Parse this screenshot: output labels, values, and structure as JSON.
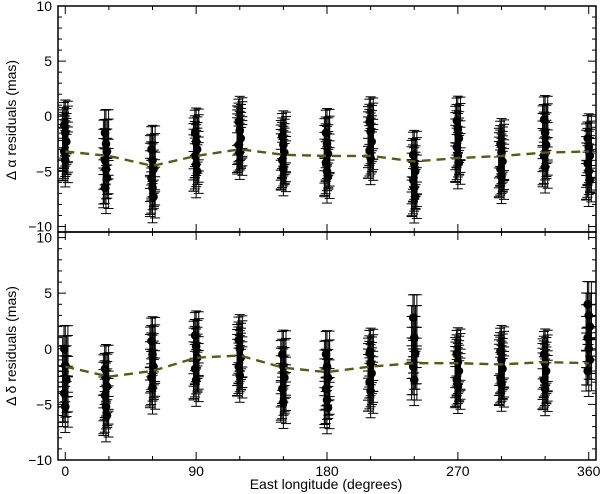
{
  "chart_data": [
    {
      "type": "scatter",
      "panel": "top",
      "ylabel": "Δ α residuals (mas)",
      "xlabel": "",
      "xlim": [
        -5,
        365
      ],
      "ylim": [
        -10.5,
        10
      ],
      "xticks": [
        0,
        90,
        180,
        270,
        360
      ],
      "yticks": [
        -10,
        -5,
        0,
        5,
        10
      ],
      "ytick_labels": [
        "−10",
        "−5",
        "0",
        "5",
        "10"
      ],
      "grid": false,
      "model_line": {
        "style": "dashed",
        "color": "#5a5a16",
        "x": [
          0,
          30,
          60,
          90,
          120,
          150,
          180,
          210,
          240,
          270,
          300,
          330,
          360
        ],
        "y": [
          -3.2,
          -3.6,
          -4.5,
          -3.6,
          -3.0,
          -3.5,
          -3.6,
          -3.6,
          -4.1,
          -3.8,
          -3.6,
          -3.3,
          -3.2
        ]
      },
      "groups": [
        {
          "x": 0,
          "y": [
            -0.8,
            -1.5,
            -2.3,
            -3.2,
            -4.0
          ]
        },
        {
          "x": 28,
          "y": [
            -1.5,
            -2.5,
            -3.2,
            -4.0,
            -4.8,
            -5.6,
            -6.5
          ]
        },
        {
          "x": 60,
          "y": [
            -3.0,
            -4.0,
            -4.8,
            -5.6,
            -6.5,
            -7.3
          ]
        },
        {
          "x": 90,
          "y": [
            -1.5,
            -2.3,
            -3.0,
            -3.6,
            -4.4,
            -5.0
          ]
        },
        {
          "x": 120,
          "y": [
            -0.5,
            -1.3,
            -2.0,
            -2.6,
            -3.3
          ]
        },
        {
          "x": 150,
          "y": [
            -1.8,
            -2.6,
            -3.3,
            -4.0,
            -4.8
          ]
        },
        {
          "x": 180,
          "y": [
            -1.5,
            -2.5,
            -3.4,
            -4.2,
            -5.0,
            -5.5
          ]
        },
        {
          "x": 210,
          "y": [
            -0.5,
            -1.4,
            -2.3,
            -3.1,
            -3.8
          ]
        },
        {
          "x": 240,
          "y": [
            -3.5,
            -4.3,
            -5.0,
            -5.8,
            -6.5,
            -7.3
          ]
        },
        {
          "x": 270,
          "y": [
            -0.4,
            -1.2,
            -2.0,
            -2.8,
            -3.6,
            -4.2
          ]
        },
        {
          "x": 300,
          "y": [
            -2.5,
            -3.3,
            -4.1,
            -4.8,
            -5.5
          ]
        },
        {
          "x": 330,
          "y": [
            -0.3,
            -1.5,
            -2.6,
            -3.6,
            -4.6
          ]
        },
        {
          "x": 360,
          "y": [
            -2.0,
            -2.8,
            -3.6,
            -4.3,
            -5.0,
            -5.8
          ]
        }
      ]
    },
    {
      "type": "scatter",
      "panel": "bottom",
      "ylabel": "Δ δ residuals (mas)",
      "xlabel": "East longitude (degrees)",
      "xlim": [
        -5,
        365
      ],
      "ylim": [
        -10,
        10.5
      ],
      "xticks": [
        0,
        90,
        180,
        270,
        360
      ],
      "yticks": [
        -10,
        -5,
        0,
        5,
        10
      ],
      "ytick_labels": [
        "−10",
        "−5",
        "0",
        "5",
        "10"
      ],
      "grid": false,
      "model_line": {
        "style": "dashed",
        "color": "#5a5a16",
        "x": [
          0,
          30,
          60,
          90,
          120,
          150,
          180,
          210,
          240,
          270,
          300,
          330,
          360
        ],
        "y": [
          -1.6,
          -2.5,
          -2.0,
          -0.8,
          -0.6,
          -1.7,
          -2.1,
          -1.6,
          -1.3,
          -1.3,
          -1.4,
          -1.2,
          -1.3
        ]
      },
      "groups": [
        {
          "x": 0,
          "y": [
            0.0,
            -1.5,
            -2.8,
            -4.0,
            -5.2
          ]
        },
        {
          "x": 28,
          "y": [
            -1.8,
            -2.6,
            -3.4,
            -4.2,
            -5.2,
            -6.0
          ]
        },
        {
          "x": 60,
          "y": [
            0.7,
            -0.5,
            -1.6,
            -2.6,
            -3.5
          ]
        },
        {
          "x": 90,
          "y": [
            1.2,
            0.2,
            -0.8,
            -1.8,
            -2.8
          ]
        },
        {
          "x": 120,
          "y": [
            0.8,
            0.0,
            -0.8,
            -1.6,
            -2.4
          ]
        },
        {
          "x": 150,
          "y": [
            -0.5,
            -1.6,
            -2.6,
            -3.6,
            -4.8
          ]
        },
        {
          "x": 180,
          "y": [
            -0.5,
            -1.6,
            -2.6,
            -3.6,
            -4.6,
            -5.3
          ]
        },
        {
          "x": 210,
          "y": [
            -0.4,
            -1.3,
            -2.2,
            -3.0,
            -3.8
          ]
        },
        {
          "x": 240,
          "y": [
            2.8,
            1.0,
            -0.4,
            -1.6,
            -2.8
          ]
        },
        {
          "x": 270,
          "y": [
            -0.4,
            -1.2,
            -2.0,
            -2.8,
            -3.4
          ]
        },
        {
          "x": 300,
          "y": [
            -0.2,
            -1.0,
            -1.8,
            -2.6,
            -3.2
          ]
        },
        {
          "x": 330,
          "y": [
            -0.5,
            -1.3,
            -2.0,
            -2.8,
            -3.6
          ]
        },
        {
          "x": 360,
          "y": [
            4.0,
            3.0,
            2.0,
            1.0,
            0.0,
            -1.0,
            -2.0
          ]
        }
      ]
    }
  ]
}
